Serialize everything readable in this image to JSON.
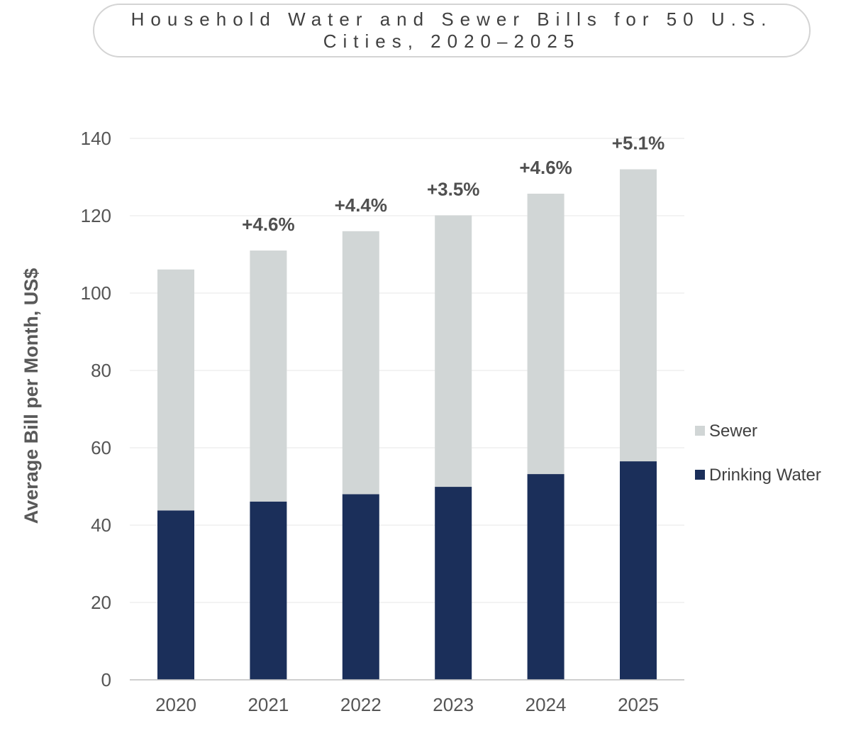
{
  "title": "Household Water and Sewer Bills for 50 U.S. Cities, 2020–2025",
  "chart_data": {
    "type": "bar",
    "stacked": true,
    "categories": [
      "2020",
      "2021",
      "2022",
      "2023",
      "2024",
      "2025"
    ],
    "series": [
      {
        "name": "Drinking Water",
        "color": "#1b2f5a",
        "values": [
          43.8,
          46.1,
          48.0,
          49.9,
          53.2,
          56.5
        ]
      },
      {
        "name": "Sewer",
        "color": "#d1d6d6",
        "values": [
          62.3,
          64.9,
          68.0,
          70.2,
          72.5,
          75.5
        ]
      }
    ],
    "totals": [
      106.1,
      111.0,
      116.0,
      120.1,
      125.7,
      132.0
    ],
    "annotations": [
      "",
      "+4.6%",
      "+4.4%",
      "+3.5%",
      "+4.6%",
      "+5.1%"
    ],
    "xlabel": "",
    "ylabel": "Average Bill per Month, US$",
    "ylim": [
      0,
      140
    ],
    "yticks": [
      0,
      20,
      40,
      60,
      80,
      100,
      120,
      140
    ],
    "grid": true,
    "legend_position": "right",
    "legend_order": [
      "Sewer",
      "Drinking Water"
    ]
  }
}
